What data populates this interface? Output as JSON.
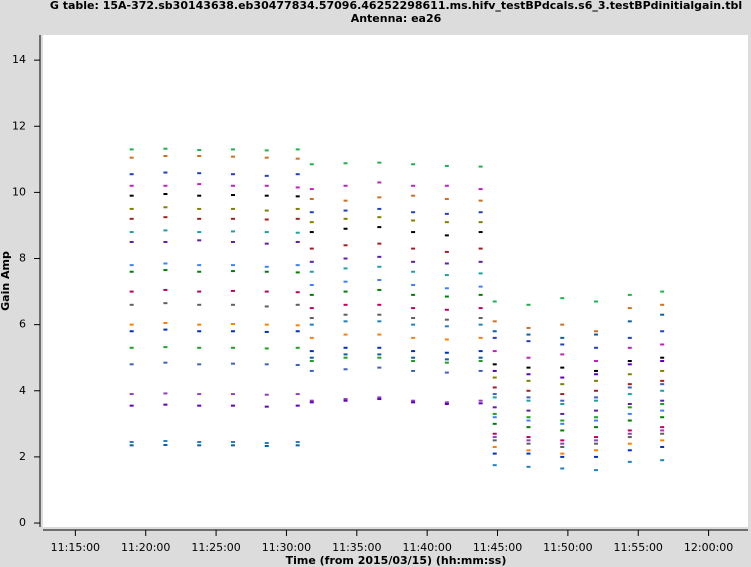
{
  "chart_data": {
    "type": "scatter",
    "title": "G table: 15A-372.sb30143638.eb30477834.57096.46252298611.ms.hifv_testBPdcals.s6_3.testBPdinitialgain.tbl",
    "subtitle": "Antenna: ea26",
    "x_label": "Time (from 2015/03/15) (hh:mm:ss)",
    "y_label": "Gain Amp",
    "xlim": [
      672.7,
      722.8
    ],
    "ylim": [
      -0.12,
      14.76
    ],
    "xticks": [
      {
        "value": 675,
        "label": "11:15:00"
      },
      {
        "value": 680,
        "label": "11:20:00"
      },
      {
        "value": 685,
        "label": "11:25:00"
      },
      {
        "value": 690,
        "label": "11:30:00"
      },
      {
        "value": 695,
        "label": "11:35:00"
      },
      {
        "value": 700,
        "label": "11:40:00"
      },
      {
        "value": 705,
        "label": "11:45:00"
      },
      {
        "value": 710,
        "label": "11:50:00"
      },
      {
        "value": 715,
        "label": "11:55:00"
      },
      {
        "value": 720,
        "label": "12:00:00"
      }
    ],
    "yticks": [
      0,
      2,
      4,
      6,
      8,
      10,
      12,
      14
    ],
    "x": [
      679,
      681.4,
      683.8,
      686.2,
      688.6,
      690.8,
      691.8,
      694.2,
      696.6,
      699,
      701.4,
      703.8,
      704.8,
      707.2,
      709.6,
      712,
      714.4,
      716.7
    ],
    "series": [
      {
        "color": "#20b050",
        "values": [
          11.3,
          11.32,
          11.28,
          11.3,
          11.27,
          11.3,
          10.85,
          10.88,
          10.9,
          10.85,
          10.8,
          10.78,
          6.7,
          6.6,
          6.8,
          6.7,
          6.9,
          7.0
        ]
      },
      {
        "color": "#d07020",
        "values": [
          11.05,
          11.1,
          11.1,
          11.08,
          11.05,
          11.02,
          9.8,
          9.75,
          9.85,
          9.9,
          9.8,
          9.75,
          6.1,
          5.9,
          6.0,
          5.8,
          6.5,
          6.6
        ]
      },
      {
        "color": "#2040c0",
        "values": [
          10.55,
          10.6,
          10.58,
          10.55,
          10.5,
          10.55,
          9.4,
          9.45,
          9.5,
          9.4,
          9.35,
          9.4,
          5.6,
          5.5,
          5.4,
          5.3,
          5.6,
          5.8
        ]
      },
      {
        "color": "#c020c0",
        "values": [
          10.2,
          10.2,
          10.25,
          10.2,
          10.2,
          10.15,
          10.1,
          10.2,
          10.3,
          10.2,
          10.2,
          10.1,
          5.2,
          5.0,
          5.1,
          4.9,
          5.3,
          5.4
        ]
      },
      {
        "color": "#000000",
        "values": [
          9.9,
          9.95,
          9.9,
          9.92,
          9.9,
          9.88,
          8.8,
          8.9,
          8.95,
          8.8,
          8.7,
          8.8,
          4.8,
          4.7,
          4.7,
          4.6,
          4.9,
          5.0
        ]
      },
      {
        "color": "#808000",
        "values": [
          9.5,
          9.55,
          9.5,
          9.5,
          9.45,
          9.5,
          9.1,
          9.2,
          9.25,
          9.15,
          9.1,
          9.1,
          4.4,
          4.3,
          4.2,
          4.3,
          4.5,
          4.6
        ]
      },
      {
        "color": "#a02020",
        "values": [
          9.2,
          9.25,
          9.2,
          9.2,
          9.18,
          9.2,
          8.3,
          8.4,
          8.45,
          8.3,
          8.2,
          8.3,
          4.1,
          4.0,
          3.9,
          4.0,
          4.2,
          4.3
        ]
      },
      {
        "color": "#20a0a0",
        "values": [
          8.8,
          8.85,
          8.8,
          8.82,
          8.8,
          8.78,
          7.6,
          7.7,
          7.75,
          7.6,
          7.5,
          7.55,
          3.8,
          3.7,
          3.6,
          3.7,
          3.9,
          4.0
        ]
      },
      {
        "color": "#6020a0",
        "values": [
          8.5,
          8.5,
          8.55,
          8.5,
          8.45,
          8.5,
          7.9,
          8.0,
          8.05,
          7.9,
          7.85,
          7.9,
          3.5,
          3.4,
          3.3,
          3.4,
          3.6,
          3.7
        ]
      },
      {
        "color": "#4080ff",
        "values": [
          7.8,
          7.85,
          7.8,
          7.8,
          7.75,
          7.8,
          7.2,
          7.3,
          7.35,
          7.2,
          7.1,
          7.15,
          3.2,
          3.1,
          3.0,
          3.1,
          3.3,
          3.4
        ]
      },
      {
        "color": "#008000",
        "values": [
          7.6,
          7.65,
          7.6,
          7.62,
          7.6,
          7.58,
          6.9,
          7.0,
          7.05,
          6.9,
          6.85,
          6.9,
          3.0,
          2.9,
          2.8,
          2.9,
          3.1,
          3.2
        ]
      },
      {
        "color": "#c00060",
        "values": [
          7.0,
          7.05,
          7.0,
          7.02,
          7.0,
          6.98,
          6.5,
          6.6,
          6.6,
          6.5,
          6.45,
          6.5,
          2.7,
          2.6,
          2.5,
          2.6,
          2.8,
          2.9
        ]
      },
      {
        "color": "#606060",
        "values": [
          6.6,
          6.65,
          6.6,
          6.6,
          6.55,
          6.6,
          6.2,
          6.3,
          6.3,
          6.2,
          6.15,
          6.2,
          2.5,
          2.4,
          2.3,
          2.4,
          2.6,
          2.7
        ]
      },
      {
        "color": "#ff8000",
        "values": [
          6.0,
          6.05,
          6.0,
          6.02,
          6.0,
          5.98,
          5.6,
          5.7,
          5.7,
          5.6,
          5.55,
          5.6,
          2.3,
          2.2,
          2.1,
          2.2,
          2.4,
          2.5
        ]
      },
      {
        "color": "#0030c0",
        "values": [
          5.8,
          5.85,
          5.8,
          5.8,
          5.78,
          5.8,
          5.2,
          5.3,
          5.3,
          5.2,
          5.15,
          5.2,
          2.1,
          2.1,
          2.0,
          2.0,
          2.2,
          2.3
        ]
      },
      {
        "color": "#20a020",
        "values": [
          5.3,
          5.32,
          5.3,
          5.3,
          5.28,
          5.3,
          4.9,
          5.0,
          5.0,
          4.9,
          4.85,
          4.9,
          3.3,
          3.2,
          3.1,
          3.2,
          3.5,
          3.6
        ]
      },
      {
        "color": "#4060c0",
        "values": [
          4.8,
          4.85,
          4.8,
          4.82,
          4.8,
          4.78,
          4.6,
          4.65,
          4.7,
          4.6,
          4.55,
          4.6,
          3.9,
          3.8,
          3.7,
          3.8,
          4.1,
          4.2
        ]
      },
      {
        "color": "#9040c0",
        "values": [
          3.9,
          3.92,
          3.9,
          3.9,
          3.88,
          3.9,
          3.7,
          3.75,
          3.8,
          3.7,
          3.65,
          3.7,
          2.6,
          2.5,
          2.4,
          2.5,
          2.7,
          2.8
        ]
      },
      {
        "color": "#6000c0",
        "values": [
          3.55,
          3.58,
          3.55,
          3.55,
          3.52,
          3.55,
          3.65,
          3.7,
          3.75,
          3.65,
          3.6,
          3.62,
          4.6,
          4.5,
          4.4,
          4.5,
          4.8,
          4.9
        ]
      },
      {
        "color": "#2080c0",
        "values": [
          2.45,
          2.48,
          2.45,
          2.45,
          2.42,
          2.45,
          6.0,
          6.1,
          6.1,
          6.0,
          5.95,
          6.0,
          1.75,
          1.7,
          1.65,
          1.6,
          1.85,
          1.9
        ]
      },
      {
        "color": "#1060a0",
        "values": [
          2.35,
          2.36,
          2.35,
          2.35,
          2.33,
          2.35,
          5.0,
          5.1,
          5.1,
          5.0,
          4.95,
          5.0,
          5.8,
          5.7,
          5.6,
          5.7,
          6.1,
          6.3
        ]
      }
    ]
  }
}
